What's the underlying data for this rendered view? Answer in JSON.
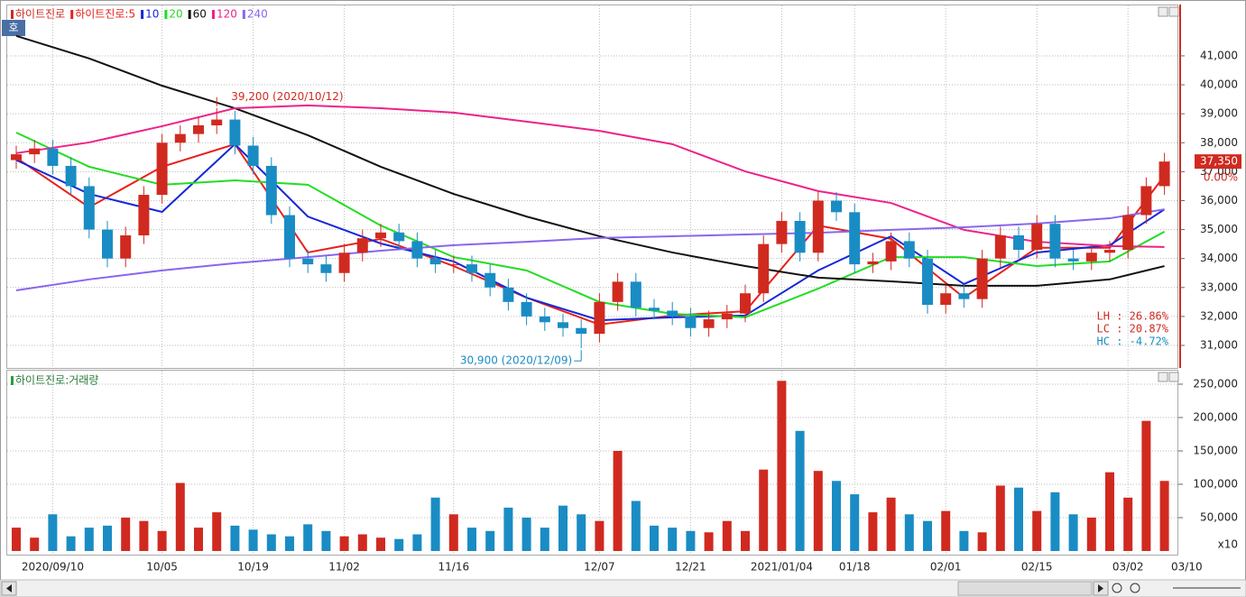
{
  "toolbar_button": "호",
  "chart_data": [
    {
      "type": "candlestick",
      "name": "하이트진로",
      "categories": [
        null,
        null,
        "2020/09/10",
        null,
        null,
        null,
        null,
        null,
        "10/05",
        null,
        null,
        null,
        null,
        "10/19",
        null,
        null,
        null,
        null,
        "11/02",
        null,
        null,
        null,
        null,
        null,
        "11/16",
        null,
        null,
        null,
        null,
        null,
        null,
        null,
        "12/07",
        null,
        null,
        null,
        null,
        "12/21",
        null,
        null,
        null,
        null,
        "2021/01/04",
        null,
        null,
        null,
        "01/18",
        null,
        null,
        null,
        null,
        "02/01",
        null,
        null,
        null,
        null,
        "02/15",
        null,
        null,
        null,
        null,
        "03/02",
        null,
        null
      ],
      "next_date_label": "03/10",
      "open": [
        37400,
        37600,
        37800,
        37200,
        36500,
        35000,
        34000,
        34800,
        36200,
        38000,
        38300,
        38600,
        38800,
        37900,
        37200,
        35500,
        34000,
        33800,
        33500,
        34200,
        34700,
        34900,
        34600,
        34000,
        33800,
        33800,
        33500,
        33000,
        32500,
        32000,
        31800,
        31600,
        31400,
        32500,
        33200,
        32300,
        32200,
        32000,
        31600,
        31900,
        32100,
        32800,
        34500,
        35300,
        34200,
        36000,
        35600,
        33800,
        33900,
        34600,
        34000,
        32400,
        32800,
        32600,
        34000,
        34800,
        34300,
        35200,
        34000,
        33900,
        34200,
        34300,
        35500,
        36500
      ],
      "high": [
        37900,
        38100,
        38100,
        37500,
        36800,
        35300,
        35100,
        36500,
        38300,
        38600,
        38900,
        39200,
        39100,
        38200,
        37500,
        35800,
        34300,
        34100,
        34500,
        35000,
        35200,
        35200,
        34900,
        34300,
        34100,
        34100,
        33800,
        33300,
        32800,
        32300,
        32100,
        31900,
        32800,
        33500,
        33500,
        32600,
        32500,
        32300,
        32200,
        32400,
        33100,
        34800,
        35600,
        35600,
        36300,
        36300,
        35900,
        34200,
        34900,
        34900,
        34300,
        33100,
        33100,
        34300,
        35100,
        35100,
        35500,
        35500,
        34300,
        34500,
        34600,
        35800,
        36800,
        37650
      ],
      "low": [
        37100,
        37300,
        36900,
        36200,
        34700,
        33700,
        33700,
        34500,
        35900,
        37700,
        38000,
        38300,
        37600,
        36900,
        35200,
        33700,
        33500,
        33200,
        33200,
        33900,
        34400,
        34300,
        33700,
        33500,
        33500,
        33200,
        32700,
        32200,
        31700,
        31500,
        31300,
        30900,
        31100,
        32200,
        32000,
        31900,
        31700,
        31300,
        31300,
        31600,
        31800,
        32500,
        34200,
        33900,
        33900,
        35300,
        33500,
        33500,
        33600,
        33700,
        32100,
        32100,
        32300,
        32300,
        33700,
        34000,
        34000,
        33700,
        33600,
        33600,
        33900,
        34000,
        35200,
        36200
      ],
      "close": [
        37600,
        37800,
        37200,
        36500,
        35000,
        34000,
        34800,
        36200,
        38000,
        38300,
        38600,
        38800,
        37900,
        37200,
        35500,
        34000,
        33800,
        33500,
        34200,
        34700,
        34900,
        34600,
        34000,
        33800,
        33800,
        33500,
        33000,
        32500,
        32000,
        31800,
        31600,
        31400,
        32500,
        33200,
        32300,
        32200,
        32000,
        31600,
        31900,
        32100,
        32800,
        34500,
        35300,
        34200,
        36000,
        35600,
        33800,
        33900,
        34600,
        34000,
        32400,
        32800,
        32600,
        34000,
        34800,
        34300,
        35200,
        34000,
        33900,
        34200,
        34300,
        35500,
        36500,
        37350
      ],
      "up_color": "#d02a20",
      "down_color": "#1a8cc4",
      "series": [
        {
          "name": "하이트진로:5",
          "color": "#e8201a",
          "x": [
            0,
            4,
            8,
            12,
            16,
            20,
            24,
            28,
            32,
            36,
            40,
            44,
            48,
            52,
            56,
            60,
            63
          ],
          "values": [
            37480,
            35770,
            37170,
            37950,
            34210,
            34680,
            33740,
            32650,
            31720,
            32030,
            32180,
            35140,
            34680,
            32650,
            34370,
            34370,
            36860
          ]
        },
        {
          "name": "10",
          "color": "#1428d8",
          "x": [
            0,
            4,
            8,
            12,
            16,
            20,
            24,
            28,
            32,
            36,
            40,
            44,
            48,
            52,
            56,
            60,
            63
          ],
          "values": [
            37400,
            36230,
            35610,
            37950,
            35450,
            34520,
            33900,
            32650,
            31870,
            31970,
            32030,
            33590,
            34770,
            33120,
            34210,
            34460,
            35700
          ]
        },
        {
          "name": "20",
          "color": "#22dd22",
          "x": [
            0,
            4,
            8,
            12,
            16,
            20,
            24,
            28,
            32,
            36,
            40,
            44,
            48,
            52,
            56,
            60,
            63
          ],
          "values": [
            38350,
            37170,
            36550,
            36700,
            36550,
            35140,
            34050,
            33590,
            32500,
            32090,
            31970,
            32960,
            34050,
            34050,
            33740,
            33900,
            34930
          ]
        },
        {
          "name": "60",
          "color": "#111111",
          "x": [
            0,
            4,
            8,
            12,
            16,
            20,
            24,
            28,
            32,
            36,
            40,
            44,
            48,
            52,
            56,
            60,
            63
          ],
          "values": [
            41690,
            40910,
            39970,
            39190,
            38260,
            37170,
            36230,
            35450,
            34770,
            34210,
            33740,
            33340,
            33210,
            33060,
            33060,
            33280,
            33740
          ]
        },
        {
          "name": "120",
          "color": "#ee2288",
          "x": [
            0,
            4,
            8,
            12,
            16,
            20,
            24,
            28,
            32,
            36,
            40,
            44,
            48,
            52,
            56,
            60,
            63
          ],
          "values": [
            37640,
            38010,
            38570,
            39190,
            39290,
            39190,
            39040,
            38730,
            38410,
            37950,
            37010,
            36330,
            35920,
            34990,
            34580,
            34430,
            34400
          ]
        },
        {
          "name": "240",
          "color": "#8866ee",
          "x": [
            0,
            4,
            8,
            12,
            16,
            20,
            24,
            28,
            32,
            36,
            40,
            44,
            48,
            52,
            56,
            60,
            63
          ],
          "values": [
            32900,
            33280,
            33590,
            33840,
            34050,
            34270,
            34460,
            34580,
            34710,
            34770,
            34830,
            34890,
            34990,
            35080,
            35210,
            35390,
            35700
          ]
        }
      ],
      "ylim": [
        30315,
        42680
      ],
      "yticks": [
        {
          "value": 31000,
          "label": "31,000"
        },
        {
          "value": 32000,
          "label": "32,000"
        },
        {
          "value": 33000,
          "label": "33,000"
        },
        {
          "value": 34000,
          "label": "34,000"
        },
        {
          "value": 35000,
          "label": "35,000"
        },
        {
          "value": 36000,
          "label": "36,000"
        },
        {
          "value": 37000,
          "label": "37,000"
        },
        {
          "value": 38000,
          "label": "38,000"
        },
        {
          "value": 39000,
          "label": "39,000"
        },
        {
          "value": 40000,
          "label": "40,000"
        },
        {
          "value": 41000,
          "label": "41,000"
        }
      ],
      "grid": true,
      "high_label": "39,200 (2020/10/12)",
      "low_label": "30,900 (2020/12/09)",
      "current_price_label": "37,350",
      "change_label": "0.00%",
      "stats": [
        "LH : 26.86%",
        "LC : 20.87%",
        "HC : -4.72%"
      ],
      "stats_colors": [
        "#d02a20",
        "#d02a20",
        "#1a8cc4"
      ]
    },
    {
      "type": "bar",
      "title": "하이트진로:거래량",
      "values": [
        35000,
        20000,
        55000,
        22000,
        35000,
        38000,
        50000,
        45000,
        30000,
        102000,
        35000,
        58000,
        38000,
        32000,
        25000,
        22000,
        40000,
        30000,
        22000,
        25000,
        20000,
        18000,
        25000,
        80000,
        55000,
        35000,
        30000,
        65000,
        50000,
        35000,
        68000,
        55000,
        45000,
        150000,
        75000,
        38000,
        35000,
        30000,
        28000,
        45000,
        30000,
        122000,
        255000,
        180000,
        120000,
        105000,
        85000,
        58000,
        80000,
        55000,
        45000,
        60000,
        30000,
        28000,
        98000,
        95000,
        60000,
        88000,
        55000,
        50000,
        118000,
        80000,
        195000,
        105000
      ],
      "ylim": [
        0,
        268900
      ],
      "yticks": [
        {
          "value": 50000,
          "label": "50,000"
        },
        {
          "value": 100000,
          "label": "100,000"
        },
        {
          "value": 150000,
          "label": "150,000"
        },
        {
          "value": 200000,
          "label": "200,000"
        },
        {
          "value": 250000,
          "label": "250,000"
        }
      ],
      "unit_label": "x10"
    }
  ]
}
